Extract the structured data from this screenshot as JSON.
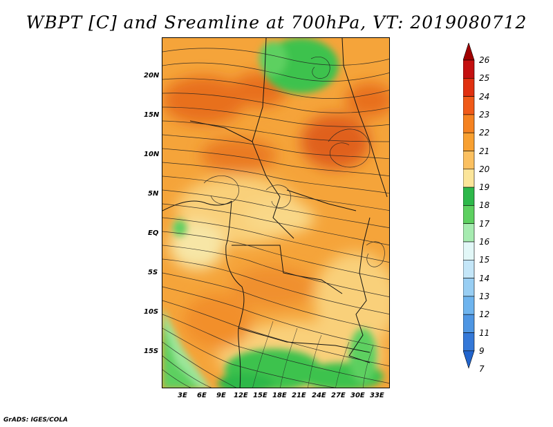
{
  "title": "WBPT [C] and Sreamline at 700hPa, VT: 2019080712",
  "footer": "GrADS: IGES/COLA",
  "y_ticks": [
    "20N",
    "15N",
    "10N",
    "5N",
    "EQ",
    "5S",
    "10S",
    "15S"
  ],
  "x_ticks": [
    "3E",
    "6E",
    "9E",
    "12E",
    "15E",
    "18E",
    "21E",
    "24E",
    "27E",
    "30E",
    "33E"
  ],
  "colorbar": {
    "levels": [
      "26",
      "25",
      "24",
      "23",
      "22",
      "21",
      "20",
      "19",
      "18",
      "17",
      "16",
      "15",
      "14",
      "13",
      "12",
      "11",
      "9",
      "7"
    ],
    "colors": [
      "#a00000",
      "#c41010",
      "#e03010",
      "#f05a18",
      "#f58220",
      "#f8a030",
      "#fbc060",
      "#fbe59a",
      "#2db84a",
      "#5dd060",
      "#a6ebb0",
      "#e2f7f7",
      "#c4e6f8",
      "#98cef3",
      "#6eb4ee",
      "#4e96e3",
      "#3478d8",
      "#2164cc"
    ]
  },
  "map": {
    "description_colors": {
      "hot": "#e8701e",
      "warm": "#f5a43a",
      "mild": "#f9d07a",
      "cool": "#f7e6a6",
      "green": "#3ec24e",
      "lightgreen": "#9be69a"
    }
  }
}
